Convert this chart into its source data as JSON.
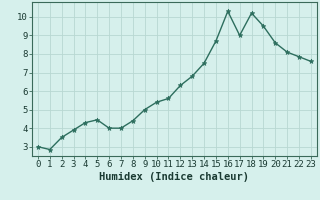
{
  "x": [
    0,
    1,
    2,
    3,
    4,
    5,
    6,
    7,
    8,
    9,
    10,
    11,
    12,
    13,
    14,
    15,
    16,
    17,
    18,
    19,
    20,
    21,
    22,
    23
  ],
  "y": [
    3.0,
    2.85,
    3.5,
    3.9,
    4.3,
    4.45,
    4.0,
    4.0,
    4.4,
    5.0,
    5.4,
    5.6,
    6.3,
    6.8,
    7.5,
    8.7,
    10.3,
    9.0,
    10.2,
    9.5,
    8.6,
    8.1,
    7.85,
    7.6
  ],
  "line_color": "#2d6e5e",
  "marker": "*",
  "markersize": 3.5,
  "linewidth": 1.0,
  "bg_color": "#d6f0ec",
  "grid_color": "#b8d8d2",
  "xlabel": "Humidex (Indice chaleur)",
  "xlim": [
    -0.5,
    23.5
  ],
  "ylim": [
    2.5,
    10.8
  ],
  "yticks": [
    3,
    4,
    5,
    6,
    7,
    8,
    9,
    10
  ],
  "xtick_labels": [
    "0",
    "1",
    "2",
    "3",
    "4",
    "5",
    "6",
    "7",
    "8",
    "9",
    "10",
    "11",
    "12",
    "13",
    "14",
    "15",
    "16",
    "17",
    "18",
    "19",
    "20",
    "21",
    "22",
    "23"
  ],
  "xlabel_fontsize": 7.5,
  "tick_fontsize": 6.5
}
